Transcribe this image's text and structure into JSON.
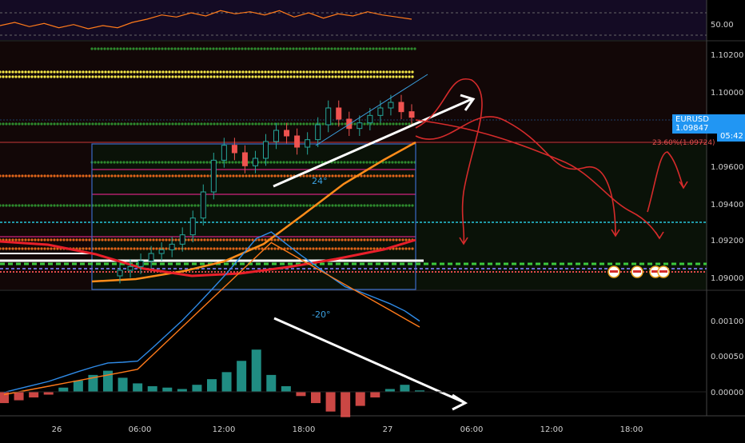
{
  "chart_data": [
    {
      "type": "line",
      "panel": "rsi",
      "y_ticks": [
        "50.00"
      ],
      "series": [
        {
          "values": [
            52,
            55,
            51,
            54,
            50,
            53,
            49,
            52,
            50,
            55,
            58,
            62,
            60,
            64,
            61,
            66,
            63,
            65,
            62,
            66,
            60,
            64,
            59,
            63,
            61,
            65,
            62,
            60,
            58
          ]
        }
      ]
    },
    {
      "type": "candlestick",
      "panel": "price",
      "symbol": "EURUSD",
      "last_price": "1.09847",
      "countdown": "05:42",
      "fib_label": "23.60%(1.09724)",
      "y_ticks": [
        "1.10200",
        "1.10000",
        "1.09600",
        "1.09400",
        "1.09200",
        "1.09000"
      ],
      "ylim": [
        1.0896,
        1.1024
      ],
      "x_ticks": [
        "26",
        "06:00",
        "12:00",
        "18:00",
        "27",
        "06:00",
        "12:00",
        "18:00"
      ],
      "annotations": [
        "24°"
      ],
      "candles_close": [
        1.0903,
        1.0905,
        1.0908,
        1.0912,
        1.0914,
        1.0917,
        1.0922,
        1.0931,
        1.0945,
        1.0962,
        1.097,
        1.0966,
        1.0959,
        1.0963,
        1.0972,
        1.0978,
        1.0975,
        1.0969,
        1.0973,
        1.0981,
        1.099,
        1.0984,
        1.0979,
        1.0982,
        1.0986,
        1.099,
        1.0993,
        1.0988,
        1.0985
      ]
    },
    {
      "type": "bar",
      "panel": "macd",
      "y_ticks": [
        "0.00100",
        "0.00050",
        "0.00000"
      ],
      "ylim": [
        -0.0002,
        0.0015
      ],
      "annotations": [
        "-20°"
      ],
      "series": [
        {
          "values": [
            -8e-05,
            -6e-05,
            -4e-05,
            -2e-05,
            3e-05,
            8e-05,
            0.00012,
            0.00015,
            0.0001,
            6e-05,
            4e-05,
            3e-05,
            2e-05,
            5e-05,
            9e-05,
            0.00014,
            0.00022,
            0.0003,
            0.00012,
            4e-05,
            -3e-05,
            -8e-05,
            -0.00014,
            -0.00018,
            -0.0001,
            -4e-05,
            2e-05,
            5e-05,
            1e-05
          ]
        }
      ]
    }
  ]
}
